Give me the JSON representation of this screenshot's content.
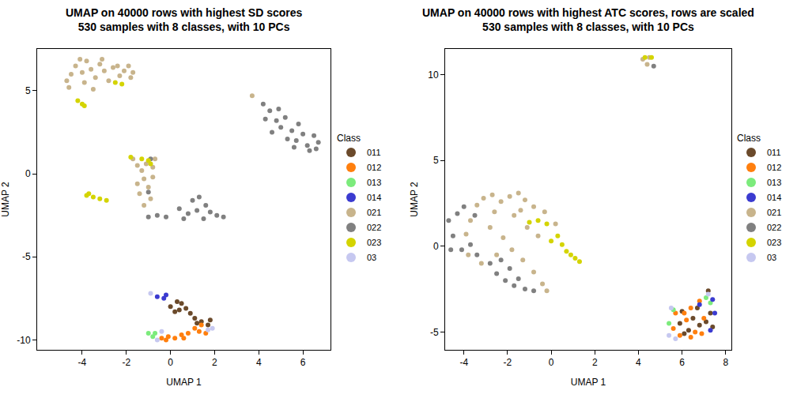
{
  "chart_data": [
    {
      "type": "scatter",
      "title": "UMAP on 40000 rows with highest SD scores\n530 samples with 8 classes, with 10 PCs",
      "x_label": "UMAP 1",
      "y_label": "UMAP 2",
      "legend_title": "Class",
      "xlim": [
        -6.04,
        7.25
      ],
      "ylim": [
        -10.6,
        7.52
      ],
      "xticks": [
        -4,
        -2,
        0,
        2,
        4,
        6
      ],
      "yticks": [
        -10,
        -5,
        0,
        5
      ],
      "marker": "circle",
      "series": [
        {
          "name": "011",
          "color": "#6b4a2b",
          "x": [
            0,
            0.3,
            0.5,
            0.7,
            0.2,
            0.9,
            1.1,
            1.4,
            1.7,
            1.8,
            0.4,
            1.2
          ],
          "y": [
            -8,
            -7.7,
            -7.8,
            -8.1,
            -8.3,
            -8.4,
            -8.7,
            -8.9,
            -9.1,
            -8.8,
            -8.2,
            -9
          ]
        },
        {
          "name": "012",
          "color": "#ff7f0e",
          "x": [
            -0.4,
            -0.1,
            0.2,
            0.5,
            0.8,
            1.1,
            1.3,
            1.6,
            -0.2,
            0.6,
            1.4
          ],
          "y": [
            -9.9,
            -9.8,
            -9.9,
            -9.7,
            -9.6,
            -9.3,
            -9.5,
            -9.6,
            -10,
            -9.9,
            -9.1
          ]
        },
        {
          "name": "013",
          "color": "#7ceb7c",
          "x": [
            -1,
            -0.8,
            -0.7
          ],
          "y": [
            -9.6,
            -9.8,
            -9.6
          ]
        },
        {
          "name": "014",
          "color": "#3b3bd0",
          "x": [
            -0.6,
            -0.3,
            -0.2
          ],
          "y": [
            -7.4,
            -7.5,
            -7.3
          ]
        },
        {
          "name": "021",
          "color": "#c8b48c",
          "x": [
            -4.7,
            -4.5,
            -4.3,
            -4.1,
            -3.8,
            -3.6,
            -3.4,
            -3.2,
            -3,
            -2.8,
            -2.6,
            -2.3,
            -2.1,
            -1.9,
            -1.7,
            -4.6,
            -3.9,
            -3.5,
            -4,
            -2.4,
            -1.8,
            -3.1,
            -1.7,
            -1.5,
            -1.3,
            -1.1,
            -0.8,
            -1.2,
            -1,
            -1.4,
            -0.9,
            -1.2,
            -0.7,
            -1.5,
            -0.8,
            3.7
          ],
          "y": [
            5.6,
            6,
            6.5,
            6.9,
            6.8,
            6.3,
            5.8,
            6.6,
            6.2,
            5.6,
            6.4,
            5.9,
            6.2,
            6.5,
            6.1,
            5.2,
            5.5,
            5.1,
            6.1,
            6.5,
            5.8,
            6.9,
            0.9,
            0.5,
            0.2,
            0.6,
            0.4,
            -0.3,
            -0.8,
            -1.2,
            -1.5,
            -1.9,
            0.9,
            -0.6,
            -0.2,
            4.7
          ]
        },
        {
          "name": "022",
          "color": "#808080",
          "x": [
            4.2,
            4.5,
            4.8,
            5,
            5.2,
            5.5,
            5.7,
            6,
            6.2,
            6.5,
            6.7,
            4.6,
            5.3,
            5.8,
            6.3,
            4.9,
            5.6,
            4.3,
            6.6,
            -1,
            -0.6,
            -0.2,
            0.4,
            0.8,
            1,
            1.2,
            1.5,
            1.8,
            2.1,
            2.4,
            1.6,
            0.6,
            1.3,
            -0.9,
            -1
          ],
          "y": [
            4.2,
            3.8,
            3.2,
            2.8,
            3.4,
            2.6,
            2,
            2.4,
            1.7,
            2.3,
            1.9,
            2.5,
            2.1,
            3,
            1.4,
            3.9,
            1.6,
            3.3,
            1.5,
            -2.6,
            -2.5,
            -2.6,
            -2.1,
            -2.4,
            -1.6,
            -2.2,
            -2.7,
            -2.3,
            -2.5,
            -2.6,
            -1.9,
            -2.7,
            -1.4,
            0.9,
            -1.1
          ]
        },
        {
          "name": "023",
          "color": "#d4d400",
          "x": [
            -4,
            -4.2,
            -3.9,
            -2.5,
            -2.2,
            -3.7,
            -3.5,
            -3.2,
            -3.8,
            -2.9,
            -1.8,
            -1.3,
            -1,
            -0.9
          ],
          "y": [
            4.2,
            4.4,
            4.1,
            5.5,
            5.4,
            -1.2,
            -1.4,
            -1.5,
            -1.3,
            -1.6,
            1,
            0.9,
            0.8,
            0.6
          ]
        },
        {
          "name": "03",
          "color": "#c6c8f0",
          "x": [
            -0.9,
            -0.4,
            1.7,
            1.9,
            -0.6
          ],
          "y": [
            -7.2,
            -9.5,
            -9.4,
            -9.3,
            -10
          ]
        }
      ]
    },
    {
      "type": "scatter",
      "title": "UMAP on 40000 rows with highest ATC scores, rows are scaled\n530 samples with 8 classes, with 10 PCs",
      "x_label": "UMAP 1",
      "y_label": "UMAP 2",
      "legend_title": "Class",
      "xlim": [
        -4.86,
        8.26
      ],
      "ylim": [
        -6.04,
        11.5
      ],
      "xticks": [
        -4,
        -2,
        0,
        2,
        4,
        6,
        8
      ],
      "yticks": [
        -5,
        0,
        5,
        10
      ],
      "marker": "circle",
      "series": [
        {
          "name": "011",
          "color": "#6b4a2b",
          "x": [
            6,
            6.5,
            6.8,
            7.1,
            7.3,
            6.3,
            5.9,
            7.2,
            6.7,
            7.4,
            6.1
          ],
          "y": [
            -3.8,
            -4.2,
            -4.6,
            -4.4,
            -3.9,
            -4.9,
            -4.5,
            -2.6,
            -3.6,
            -4.7,
            -5.1
          ]
        },
        {
          "name": "012",
          "color": "#ff7f0e",
          "x": [
            5.6,
            5.9,
            6.2,
            6.4,
            6.6,
            6.9,
            7,
            6.1,
            5.7,
            6.4,
            6.8
          ],
          "y": [
            -4.8,
            -5.2,
            -4.3,
            -3.6,
            -5,
            -5.1,
            -4.2,
            -3.9,
            -3.9,
            -5.3,
            -3.2
          ]
        },
        {
          "name": "013",
          "color": "#7ceb7c",
          "x": [
            5.4,
            7.1,
            7.3,
            5.6
          ],
          "y": [
            -4.5,
            -3,
            -3.3,
            -3.7
          ]
        },
        {
          "name": "014",
          "color": "#3b3bd0",
          "x": [
            7.5,
            7.3,
            6.8,
            7.4
          ],
          "y": [
            -3.9,
            -4.9,
            -3.4,
            -3.1
          ]
        },
        {
          "name": "021",
          "color": "#c8b48c",
          "x": [
            -3.9,
            -3.7,
            -3.4,
            -3.1,
            -2.7,
            -2.3,
            -1.9,
            -1.5,
            -1.2,
            -0.8,
            -0.3,
            0.2,
            -2.8,
            -2.2,
            -1.7,
            -1.1,
            -0.6,
            -2.5,
            -1.8,
            -1.3,
            -0.8,
            -0.4,
            -0.2,
            -3.8,
            -3.2,
            -2.6,
            -1.4,
            4.2,
            4.4,
            4.5
          ],
          "y": [
            0.7,
            1.5,
            2.4,
            2.8,
            3,
            2.6,
            2.9,
            3.1,
            2.7,
            2.3,
            2,
            1.3,
            1.1,
            0.5,
            1.8,
            1.1,
            0.6,
            -0.5,
            -0.2,
            -0.8,
            -1.5,
            -2.2,
            -2.6,
            -0.5,
            -1,
            2,
            2.1,
            10.9,
            10.6,
            11
          ]
        },
        {
          "name": "022",
          "color": "#808080",
          "x": [
            -4.7,
            -4.5,
            -4.3,
            -4.1,
            -4.6,
            -3.7,
            -3.4,
            -4,
            -3.5,
            -2.8,
            -2.5,
            -2.1,
            -1.7,
            -1.2,
            -1.9,
            -2.3,
            -1.5,
            4.7,
            -0.8
          ],
          "y": [
            1.5,
            0.6,
            1.9,
            -0.2,
            -0.2,
            0.1,
            -0.5,
            2.3,
            1.8,
            -1,
            -1.6,
            -2,
            -2.3,
            -2.5,
            -1.3,
            -0.8,
            -1.9,
            10.5,
            -2.6
          ]
        },
        {
          "name": "023",
          "color": "#d4d400",
          "x": [
            -1,
            -0.6,
            -0.2,
            0.3,
            0.5,
            0.7,
            0.9,
            1.1,
            1.3,
            0,
            4.3,
            4.6
          ],
          "y": [
            1.4,
            1.5,
            1.3,
            0.6,
            0.1,
            -0.3,
            -0.5,
            -0.7,
            -0.9,
            0.3,
            11,
            11
          ]
        },
        {
          "name": "03",
          "color": "#c6c8f0",
          "x": [
            5.4,
            5.5,
            7.2,
            5.7
          ],
          "y": [
            -5.2,
            -3.6,
            -2.8,
            -5.4
          ]
        }
      ]
    }
  ]
}
